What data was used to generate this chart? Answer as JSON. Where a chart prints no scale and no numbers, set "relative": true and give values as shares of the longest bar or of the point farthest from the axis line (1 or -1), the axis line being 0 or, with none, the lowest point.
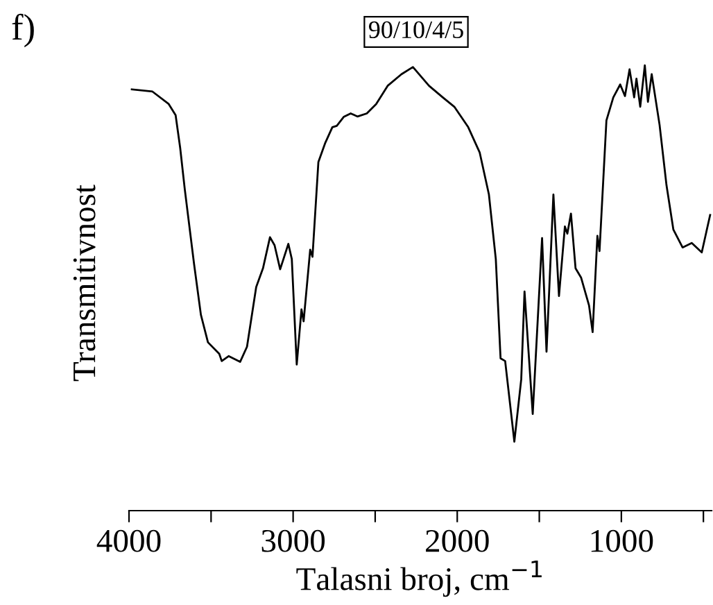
{
  "chart_data": {
    "type": "line",
    "title": "90/10/4/5",
    "xlabel": "Talasni broj, cm$^{−1}$",
    "ylabel": "Transmitivnost",
    "annotations": [
      "f)"
    ],
    "relative": true,
    "tick_labels": "x",
    "grid": false,
    "marker": "none",
    "line_style": "solid",
    "xlim": [
      4000,
      450
    ],
    "xticks": [
      4000,
      {
        "value": 3500,
        "label": null
      },
      3000,
      {
        "value": 2500,
        "label": null
      },
      2000,
      {
        "value": 1500,
        "label": null
      },
      1000,
      {
        "value": 500,
        "label": null
      }
    ],
    "series": [
      {
        "color": "#000000",
        "x": [
          3983,
          3857,
          3758,
          3716,
          3688,
          3660,
          3604,
          3562,
          3519,
          3450,
          3435,
          3393,
          3323,
          3281,
          3225,
          3183,
          3141,
          3113,
          3079,
          3029,
          3008,
          2978,
          2949,
          2936,
          2896,
          2882,
          2846,
          2804,
          2761,
          2734,
          2692,
          2649,
          2607,
          2551,
          2494,
          2424,
          2340,
          2270,
          2172,
          2088,
          2018,
          1933,
          1863,
          1807,
          1765,
          1736,
          1708,
          1652,
          1610,
          1590,
          1540,
          1483,
          1456,
          1414,
          1380,
          1344,
          1329,
          1307,
          1279,
          1245,
          1197,
          1175,
          1146,
          1133,
          1091,
          1049,
          1007,
          978,
          950,
          922,
          908,
          885,
          857,
          838,
          815,
          767,
          725,
          683,
          627,
          571,
          510,
          459
        ],
        "values": [
          0.946,
          0.941,
          0.913,
          0.888,
          0.814,
          0.721,
          0.555,
          0.44,
          0.378,
          0.352,
          0.336,
          0.347,
          0.334,
          0.368,
          0.502,
          0.545,
          0.614,
          0.596,
          0.542,
          0.599,
          0.565,
          0.328,
          0.452,
          0.425,
          0.586,
          0.57,
          0.783,
          0.826,
          0.861,
          0.864,
          0.884,
          0.892,
          0.885,
          0.892,
          0.913,
          0.954,
          0.98,
          0.996,
          0.954,
          0.928,
          0.907,
          0.861,
          0.804,
          0.71,
          0.565,
          0.342,
          0.336,
          0.155,
          0.295,
          0.492,
          0.217,
          0.612,
          0.357,
          0.71,
          0.482,
          0.638,
          0.622,
          0.667,
          0.544,
          0.523,
          0.461,
          0.401,
          0.617,
          0.583,
          0.876,
          0.928,
          0.957,
          0.931,
          0.991,
          0.928,
          0.97,
          0.907,
          1,
          0.918,
          0.98,
          0.866,
          0.731,
          0.631,
          0.591,
          0.601,
          0.58,
          0.664
        ]
      }
    ]
  }
}
